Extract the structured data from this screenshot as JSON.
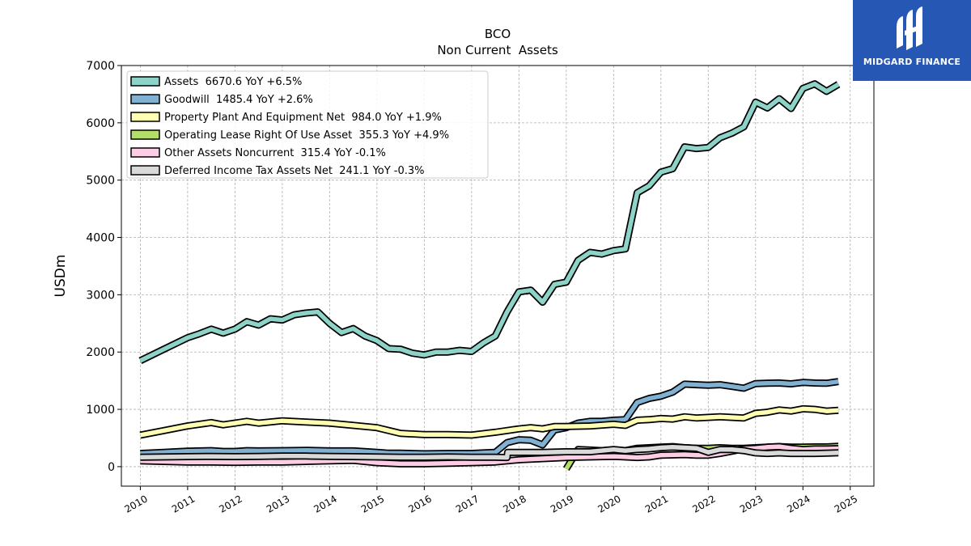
{
  "brand": {
    "name": "MIDGARD FINANCE",
    "logo_icon": "midgard-m-logo-icon",
    "color": "#2757b4"
  },
  "chart_data": {
    "type": "line",
    "title": "BCO",
    "subtitle": "Non Current  Assets",
    "xlabel": "",
    "ylabel": "USDm",
    "xlim": [
      2009.6,
      2025.5
    ],
    "ylim": [
      -340,
      7000
    ],
    "x_ticks": [
      2010,
      2011,
      2012,
      2013,
      2014,
      2015,
      2016,
      2017,
      2018,
      2019,
      2020,
      2021,
      2022,
      2023,
      2024,
      2025
    ],
    "y_ticks": [
      0,
      1000,
      2000,
      3000,
      4000,
      5000,
      6000,
      7000
    ],
    "grid": true,
    "legend_position": "top-left",
    "series": [
      {
        "name": "Assets",
        "legend": "Assets  6670.6 YoY +6.5%",
        "color": "#8dd3c7",
        "points": [
          [
            2010.0,
            1850
          ],
          [
            2010.25,
            1950
          ],
          [
            2010.5,
            2050
          ],
          [
            2010.75,
            2150
          ],
          [
            2011.0,
            2250
          ],
          [
            2011.25,
            2320
          ],
          [
            2011.5,
            2400
          ],
          [
            2011.75,
            2330
          ],
          [
            2012.0,
            2400
          ],
          [
            2012.25,
            2530
          ],
          [
            2012.5,
            2470
          ],
          [
            2012.75,
            2580
          ],
          [
            2013.0,
            2560
          ],
          [
            2013.25,
            2650
          ],
          [
            2013.5,
            2680
          ],
          [
            2013.75,
            2700
          ],
          [
            2014.0,
            2500
          ],
          [
            2014.25,
            2340
          ],
          [
            2014.5,
            2410
          ],
          [
            2014.75,
            2280
          ],
          [
            2015.0,
            2200
          ],
          [
            2015.25,
            2060
          ],
          [
            2015.5,
            2050
          ],
          [
            2015.75,
            1980
          ],
          [
            2016.0,
            1950
          ],
          [
            2016.25,
            2000
          ],
          [
            2016.5,
            2000
          ],
          [
            2016.75,
            2030
          ],
          [
            2017.0,
            2010
          ],
          [
            2017.25,
            2160
          ],
          [
            2017.5,
            2280
          ],
          [
            2017.75,
            2700
          ],
          [
            2018.0,
            3050
          ],
          [
            2018.25,
            3080
          ],
          [
            2018.5,
            2870
          ],
          [
            2018.75,
            3180
          ],
          [
            2019.0,
            3220
          ],
          [
            2019.25,
            3600
          ],
          [
            2019.5,
            3740
          ],
          [
            2019.75,
            3710
          ],
          [
            2020.0,
            3770
          ],
          [
            2020.25,
            3800
          ],
          [
            2020.5,
            4780
          ],
          [
            2020.75,
            4900
          ],
          [
            2021.0,
            5140
          ],
          [
            2021.25,
            5200
          ],
          [
            2021.5,
            5580
          ],
          [
            2021.75,
            5550
          ],
          [
            2022.0,
            5570
          ],
          [
            2022.25,
            5740
          ],
          [
            2022.5,
            5820
          ],
          [
            2022.75,
            5930
          ],
          [
            2023.0,
            6360
          ],
          [
            2023.25,
            6260
          ],
          [
            2023.5,
            6420
          ],
          [
            2023.75,
            6250
          ],
          [
            2024.0,
            6600
          ],
          [
            2024.25,
            6680
          ],
          [
            2024.5,
            6550
          ],
          [
            2024.75,
            6670.6
          ]
        ]
      },
      {
        "name": "Goodwill",
        "legend": "Goodwill  1485.4 YoY +2.6%",
        "color": "#80b1d3",
        "points": [
          [
            2010.0,
            230
          ],
          [
            2010.5,
            250
          ],
          [
            2011.0,
            270
          ],
          [
            2011.5,
            280
          ],
          [
            2011.75,
            265
          ],
          [
            2012.0,
            265
          ],
          [
            2012.25,
            280
          ],
          [
            2012.5,
            275
          ],
          [
            2013.0,
            280
          ],
          [
            2013.5,
            285
          ],
          [
            2014.0,
            275
          ],
          [
            2014.5,
            275
          ],
          [
            2015.0,
            250
          ],
          [
            2015.25,
            235
          ],
          [
            2015.5,
            235
          ],
          [
            2016.0,
            225
          ],
          [
            2016.5,
            230
          ],
          [
            2017.0,
            230
          ],
          [
            2017.25,
            240
          ],
          [
            2017.5,
            250
          ],
          [
            2017.75,
            420
          ],
          [
            2018.0,
            470
          ],
          [
            2018.25,
            460
          ],
          [
            2018.5,
            380
          ],
          [
            2018.75,
            640
          ],
          [
            2019.0,
            680
          ],
          [
            2019.25,
            760
          ],
          [
            2019.5,
            790
          ],
          [
            2019.75,
            790
          ],
          [
            2020.0,
            810
          ],
          [
            2020.25,
            820
          ],
          [
            2020.5,
            1120
          ],
          [
            2020.75,
            1190
          ],
          [
            2021.0,
            1230
          ],
          [
            2021.25,
            1300
          ],
          [
            2021.5,
            1440
          ],
          [
            2021.75,
            1430
          ],
          [
            2022.0,
            1420
          ],
          [
            2022.25,
            1430
          ],
          [
            2022.5,
            1400
          ],
          [
            2022.75,
            1370
          ],
          [
            2023.0,
            1450
          ],
          [
            2023.25,
            1455
          ],
          [
            2023.5,
            1460
          ],
          [
            2023.75,
            1445
          ],
          [
            2024.0,
            1470
          ],
          [
            2024.25,
            1460
          ],
          [
            2024.5,
            1455
          ],
          [
            2024.75,
            1485.4
          ]
        ]
      },
      {
        "name": "Property Plant And Equipment Net",
        "legend": "Property Plant And Equipment Net  984.0 YoY +1.9%",
        "color": "#ffffb3",
        "points": [
          [
            2010.0,
            550
          ],
          [
            2010.5,
            630
          ],
          [
            2011.0,
            710
          ],
          [
            2011.5,
            770
          ],
          [
            2011.75,
            730
          ],
          [
            2012.0,
            760
          ],
          [
            2012.25,
            790
          ],
          [
            2012.5,
            760
          ],
          [
            2013.0,
            800
          ],
          [
            2013.5,
            780
          ],
          [
            2014.0,
            760
          ],
          [
            2014.5,
            720
          ],
          [
            2015.0,
            680
          ],
          [
            2015.25,
            630
          ],
          [
            2015.5,
            580
          ],
          [
            2016.0,
            560
          ],
          [
            2016.5,
            560
          ],
          [
            2017.0,
            550
          ],
          [
            2017.5,
            600
          ],
          [
            2018.0,
            660
          ],
          [
            2018.25,
            680
          ],
          [
            2018.5,
            660
          ],
          [
            2018.75,
            700
          ],
          [
            2019.0,
            700
          ],
          [
            2019.5,
            710
          ],
          [
            2020.0,
            740
          ],
          [
            2020.25,
            720
          ],
          [
            2020.5,
            810
          ],
          [
            2020.75,
            820
          ],
          [
            2021.0,
            840
          ],
          [
            2021.25,
            830
          ],
          [
            2021.5,
            870
          ],
          [
            2021.75,
            850
          ],
          [
            2022.0,
            860
          ],
          [
            2022.25,
            870
          ],
          [
            2022.5,
            860
          ],
          [
            2022.75,
            850
          ],
          [
            2023.0,
            930
          ],
          [
            2023.25,
            950
          ],
          [
            2023.5,
            990
          ],
          [
            2023.75,
            970
          ],
          [
            2024.0,
            1010
          ],
          [
            2024.25,
            1000
          ],
          [
            2024.5,
            970
          ],
          [
            2024.75,
            984
          ]
        ]
      },
      {
        "name": "Operating Lease Right Of Use Asset",
        "legend": "Operating Lease Right Of Use Asset  355.3 YoY +4.9%",
        "color": "#b3de69",
        "points": [
          [
            2019.0,
            -40
          ],
          [
            2019.25,
            300
          ],
          [
            2019.5,
            290
          ],
          [
            2019.75,
            280
          ],
          [
            2020.0,
            290
          ],
          [
            2020.25,
            280
          ],
          [
            2020.5,
            320
          ],
          [
            2020.75,
            330
          ],
          [
            2021.0,
            340
          ],
          [
            2021.25,
            350
          ],
          [
            2021.5,
            330
          ],
          [
            2021.75,
            320
          ],
          [
            2022.0,
            320
          ],
          [
            2022.25,
            330
          ],
          [
            2022.5,
            320
          ],
          [
            2022.75,
            320
          ],
          [
            2023.0,
            330
          ],
          [
            2023.25,
            340
          ],
          [
            2023.5,
            350
          ],
          [
            2023.75,
            340
          ],
          [
            2024.0,
            340
          ],
          [
            2024.25,
            345
          ],
          [
            2024.5,
            345
          ],
          [
            2024.75,
            355.3
          ]
        ]
      },
      {
        "name": "Other Assets Noncurrent",
        "legend": "Other Assets Noncurrent  315.4 YoY -0.1%",
        "color": "#fccde5",
        "points": [
          [
            2010.0,
            100
          ],
          [
            2010.5,
            90
          ],
          [
            2011.0,
            80
          ],
          [
            2011.5,
            80
          ],
          [
            2012.0,
            75
          ],
          [
            2012.5,
            80
          ],
          [
            2013.0,
            80
          ],
          [
            2013.5,
            90
          ],
          [
            2014.0,
            100
          ],
          [
            2014.5,
            110
          ],
          [
            2015.0,
            70
          ],
          [
            2015.5,
            50
          ],
          [
            2016.0,
            50
          ],
          [
            2016.5,
            60
          ],
          [
            2017.0,
            70
          ],
          [
            2017.5,
            80
          ],
          [
            2018.0,
            120
          ],
          [
            2018.5,
            140
          ],
          [
            2019.0,
            160
          ],
          [
            2019.5,
            170
          ],
          [
            2020.0,
            180
          ],
          [
            2020.25,
            170
          ],
          [
            2020.5,
            160
          ],
          [
            2020.75,
            170
          ],
          [
            2021.0,
            200
          ],
          [
            2021.5,
            210
          ],
          [
            2021.75,
            200
          ],
          [
            2022.0,
            200
          ],
          [
            2022.25,
            230
          ],
          [
            2022.5,
            270
          ],
          [
            2022.75,
            310
          ],
          [
            2023.0,
            320
          ],
          [
            2023.25,
            340
          ],
          [
            2023.5,
            350
          ],
          [
            2023.75,
            320
          ],
          [
            2024.0,
            300
          ],
          [
            2024.25,
            310
          ],
          [
            2024.5,
            310
          ],
          [
            2024.75,
            315.4
          ]
        ]
      },
      {
        "name": "Deferred Income Tax Assets Net",
        "legend": "Deferred Income Tax Assets Net  241.1 YoY -0.3%",
        "color": "#d9d9d9",
        "points": [
          [
            2010.0,
            165
          ],
          [
            2010.5,
            170
          ],
          [
            2011.0,
            175
          ],
          [
            2011.5,
            180
          ],
          [
            2012.0,
            175
          ],
          [
            2012.5,
            180
          ],
          [
            2013.0,
            185
          ],
          [
            2013.5,
            185
          ],
          [
            2014.0,
            180
          ],
          [
            2014.5,
            175
          ],
          [
            2015.0,
            170
          ],
          [
            2015.5,
            165
          ],
          [
            2016.0,
            165
          ],
          [
            2016.5,
            170
          ],
          [
            2017.0,
            165
          ],
          [
            2017.5,
            165
          ],
          [
            2017.75,
            160
          ],
          [
            2017.76,
            250
          ],
          [
            2018.0,
            250
          ],
          [
            2018.5,
            250
          ],
          [
            2019.0,
            260
          ],
          [
            2019.5,
            260
          ],
          [
            2020.0,
            300
          ],
          [
            2020.25,
            280
          ],
          [
            2020.5,
            300
          ],
          [
            2020.75,
            310
          ],
          [
            2021.0,
            330
          ],
          [
            2021.25,
            340
          ],
          [
            2021.5,
            330
          ],
          [
            2021.75,
            320
          ],
          [
            2022.0,
            250
          ],
          [
            2022.25,
            300
          ],
          [
            2022.5,
            300
          ],
          [
            2022.75,
            280
          ],
          [
            2023.0,
            240
          ],
          [
            2023.25,
            230
          ],
          [
            2023.5,
            240
          ],
          [
            2023.75,
            230
          ],
          [
            2024.0,
            230
          ],
          [
            2024.25,
            230
          ],
          [
            2024.5,
            235
          ],
          [
            2024.75,
            241.1
          ]
        ]
      }
    ]
  }
}
